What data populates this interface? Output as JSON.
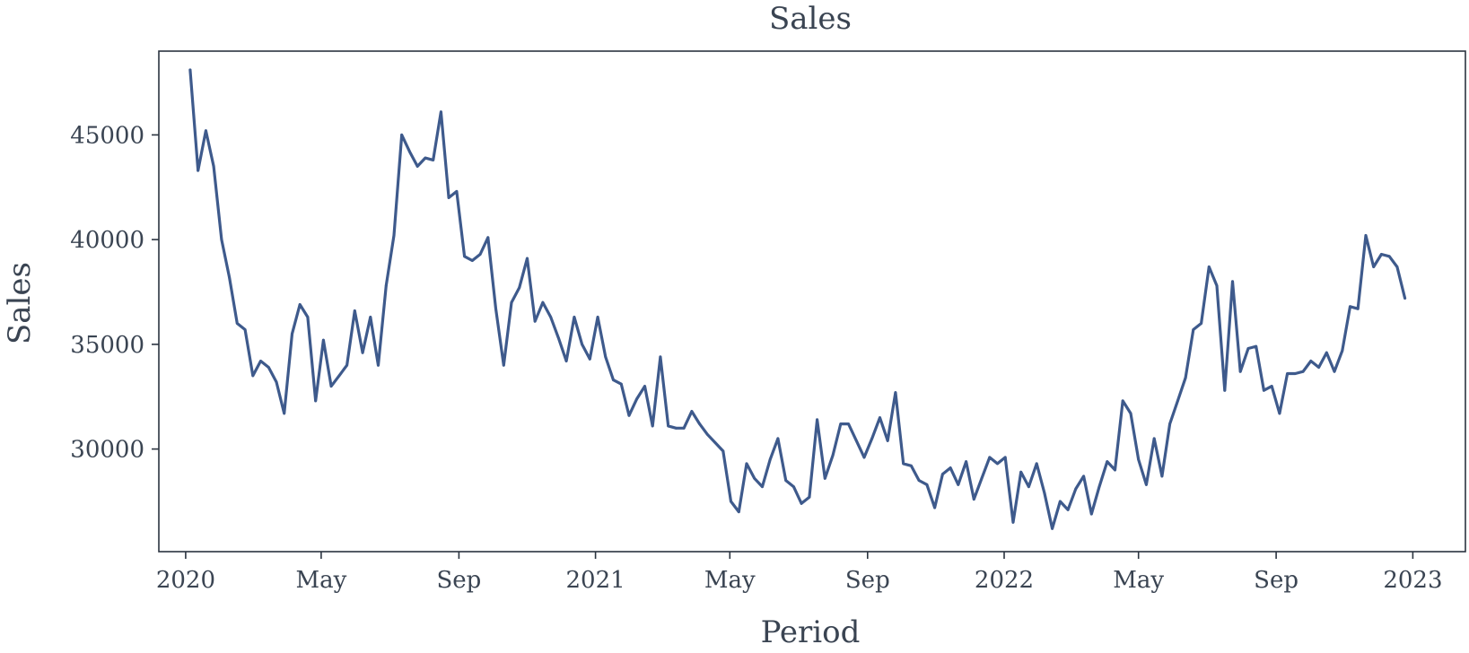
{
  "colors": {
    "line": "#3e5a8c",
    "text": "#3a4452",
    "axis": "#2b3440",
    "background": "#ffffff"
  },
  "chart_data": {
    "type": "line",
    "title": "Sales",
    "xlabel": "Period",
    "ylabel": "Sales",
    "x_type": "date",
    "xlim": [
      "2019-12-08",
      "2023-02-17"
    ],
    "ylim": [
      25100,
      49000
    ],
    "grid": false,
    "legend": "none",
    "y_ticks": [
      30000,
      35000,
      40000,
      45000
    ],
    "y_tick_labels": [
      "30000",
      "35000",
      "40000",
      "45000"
    ],
    "x_ticks": [
      "2020-01-01",
      "2020-05-01",
      "2020-09-01",
      "2021-01-01",
      "2021-05-01",
      "2021-09-01",
      "2022-01-01",
      "2022-05-01",
      "2022-09-01",
      "2023-01-01"
    ],
    "x_tick_labels": [
      "2020",
      "May",
      "Sep",
      "2021",
      "May",
      "Sep",
      "2022",
      "May",
      "Sep",
      "2023"
    ],
    "x": [
      "2020-01-05",
      "2020-01-12",
      "2020-01-19",
      "2020-01-26",
      "2020-02-02",
      "2020-02-09",
      "2020-02-16",
      "2020-02-23",
      "2020-03-01",
      "2020-03-08",
      "2020-03-15",
      "2020-03-22",
      "2020-03-29",
      "2020-04-05",
      "2020-04-12",
      "2020-04-19",
      "2020-04-26",
      "2020-05-03",
      "2020-05-10",
      "2020-05-17",
      "2020-05-24",
      "2020-05-31",
      "2020-06-07",
      "2020-06-14",
      "2020-06-21",
      "2020-06-28",
      "2020-07-05",
      "2020-07-12",
      "2020-07-19",
      "2020-07-26",
      "2020-08-02",
      "2020-08-09",
      "2020-08-16",
      "2020-08-23",
      "2020-08-30",
      "2020-09-06",
      "2020-09-13",
      "2020-09-20",
      "2020-09-27",
      "2020-10-04",
      "2020-10-11",
      "2020-10-18",
      "2020-10-25",
      "2020-11-01",
      "2020-11-08",
      "2020-11-15",
      "2020-11-22",
      "2020-11-29",
      "2020-12-06",
      "2020-12-13",
      "2020-12-20",
      "2020-12-27",
      "2021-01-03",
      "2021-01-10",
      "2021-01-17",
      "2021-01-24",
      "2021-01-31",
      "2021-02-07",
      "2021-02-14",
      "2021-02-21",
      "2021-02-28",
      "2021-03-07",
      "2021-03-14",
      "2021-03-21",
      "2021-03-28",
      "2021-04-04",
      "2021-04-11",
      "2021-04-18",
      "2021-04-25",
      "2021-05-02",
      "2021-05-09",
      "2021-05-16",
      "2021-05-23",
      "2021-05-30",
      "2021-06-06",
      "2021-06-13",
      "2021-06-20",
      "2021-06-27",
      "2021-07-04",
      "2021-07-11",
      "2021-07-18",
      "2021-07-25",
      "2021-08-01",
      "2021-08-08",
      "2021-08-15",
      "2021-08-22",
      "2021-08-29",
      "2021-09-05",
      "2021-09-12",
      "2021-09-19",
      "2021-09-26",
      "2021-10-03",
      "2021-10-10",
      "2021-10-17",
      "2021-10-24",
      "2021-10-31",
      "2021-11-07",
      "2021-11-14",
      "2021-11-21",
      "2021-11-28",
      "2021-12-05",
      "2021-12-12",
      "2021-12-19",
      "2021-12-26",
      "2022-01-02",
      "2022-01-09",
      "2022-01-16",
      "2022-01-23",
      "2022-01-30",
      "2022-02-06",
      "2022-02-13",
      "2022-02-20",
      "2022-02-27",
      "2022-03-06",
      "2022-03-13",
      "2022-03-20",
      "2022-03-27",
      "2022-04-03",
      "2022-04-10",
      "2022-04-17",
      "2022-04-24",
      "2022-05-01",
      "2022-05-08",
      "2022-05-15",
      "2022-05-22",
      "2022-05-29",
      "2022-06-05",
      "2022-06-12",
      "2022-06-19",
      "2022-06-26",
      "2022-07-03",
      "2022-07-10",
      "2022-07-17",
      "2022-07-24",
      "2022-07-31",
      "2022-08-07",
      "2022-08-14",
      "2022-08-21",
      "2022-08-28",
      "2022-09-04",
      "2022-09-11",
      "2022-09-18",
      "2022-09-25",
      "2022-10-02",
      "2022-10-09",
      "2022-10-16",
      "2022-10-23",
      "2022-10-30",
      "2022-11-06",
      "2022-11-13",
      "2022-11-20",
      "2022-11-27",
      "2022-12-04",
      "2022-12-11",
      "2022-12-18",
      "2022-12-25"
    ],
    "values": [
      48100,
      43300,
      45200,
      43500,
      40000,
      38200,
      36000,
      35700,
      33500,
      34200,
      33900,
      33200,
      31700,
      35500,
      36900,
      36300,
      32300,
      35200,
      33000,
      33500,
      34000,
      36600,
      34600,
      36300,
      34000,
      37800,
      40200,
      45000,
      44200,
      43500,
      43900,
      43800,
      46100,
      42000,
      42300,
      39200,
      39000,
      39300,
      40100,
      36700,
      34000,
      37000,
      37700,
      39100,
      36100,
      37000,
      36300,
      35300,
      34200,
      36300,
      35000,
      34300,
      36300,
      34400,
      33300,
      33100,
      31600,
      32400,
      33000,
      31100,
      34400,
      31100,
      31000,
      31000,
      31800,
      31200,
      30700,
      30300,
      29900,
      27500,
      27000,
      29300,
      28600,
      28200,
      29500,
      30500,
      28500,
      28200,
      27400,
      27700,
      31400,
      28600,
      29700,
      31200,
      31200,
      30400,
      29600,
      30500,
      31500,
      30400,
      32700,
      29300,
      29200,
      28500,
      28300,
      27200,
      28800,
      29100,
      28300,
      29400,
      27600,
      28600,
      29600,
      29300,
      29600,
      26500,
      28900,
      28200,
      29300,
      27900,
      26200,
      27500,
      27100,
      28100,
      28700,
      26900,
      28200,
      29400,
      29000,
      32300,
      31700,
      29500,
      28300,
      30500,
      28700,
      31200,
      32300,
      33400,
      35700,
      36000,
      38700,
      37800,
      32800,
      38000,
      33700,
      34800,
      34900,
      32800,
      33000,
      31700,
      33600,
      33600,
      33700,
      34200,
      33900,
      34600,
      33700,
      34700,
      36800,
      36700,
      40200,
      38700,
      39300,
      39200,
      38700,
      37200
    ]
  }
}
